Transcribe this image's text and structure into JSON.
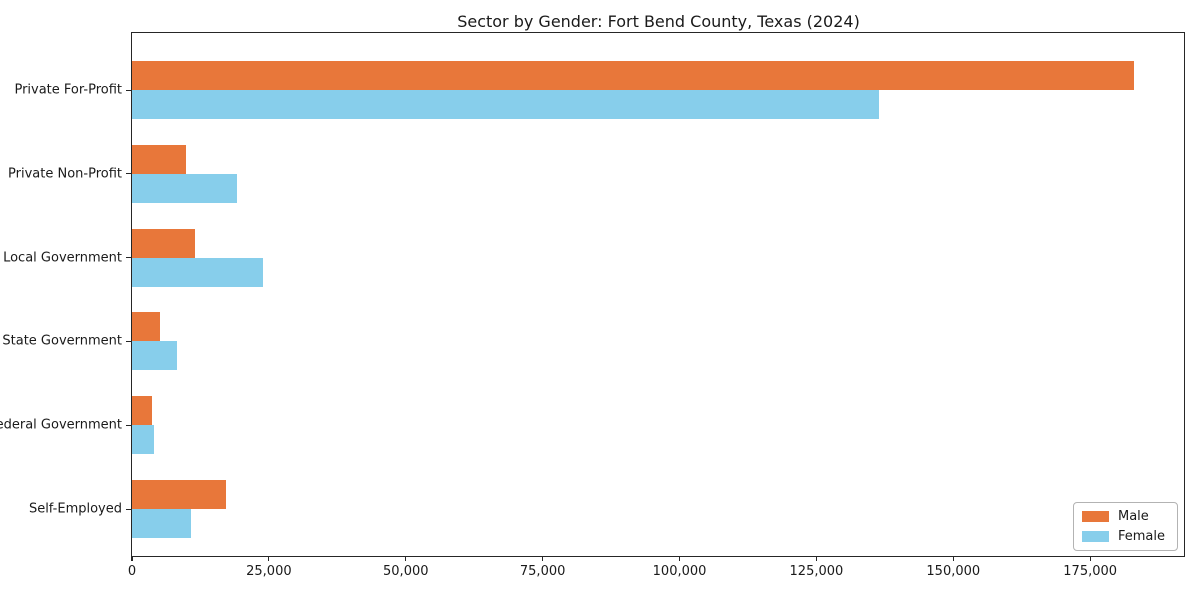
{
  "chart_data": {
    "type": "bar",
    "orientation": "horizontal",
    "title": "Sector by Gender: Fort Bend County, Texas (2024)",
    "xlabel": "",
    "ylabel": "",
    "categories": [
      "Private For-Profit",
      "Private Non-Profit",
      "Local Government",
      "State Government",
      "Federal Government",
      "Self-Employed"
    ],
    "series": [
      {
        "name": "Male",
        "color": "#E8773A",
        "values": [
          183000,
          9900,
          11500,
          5100,
          3650,
          17100
        ]
      },
      {
        "name": "Female",
        "color": "#87CEEB",
        "values": [
          136500,
          19200,
          23900,
          8300,
          4000,
          10800
        ]
      }
    ],
    "xlim": [
      0,
      192500
    ],
    "x_ticks": [
      0,
      25000,
      50000,
      75000,
      100000,
      125000,
      150000,
      175000
    ],
    "x_tick_labels": [
      "0",
      "25,000",
      "50,000",
      "75,000",
      "100,000",
      "125,000",
      "150,000",
      "175,000"
    ],
    "grid": false,
    "legend_position": "lower right"
  },
  "legend": {
    "items": [
      {
        "label": "Male",
        "color": "#E8773A"
      },
      {
        "label": "Female",
        "color": "#87CEEB"
      }
    ]
  }
}
